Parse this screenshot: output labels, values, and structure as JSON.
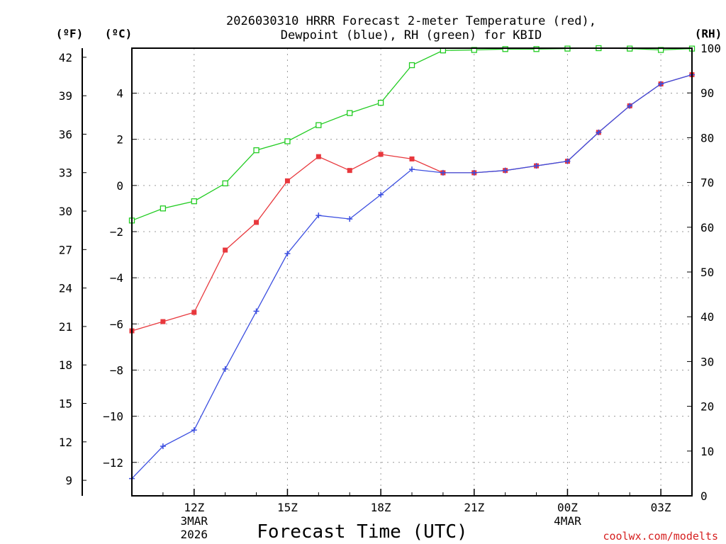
{
  "chart_data": {
    "type": "line",
    "title_line1": "2026030310 HRRR Forecast 2-meter Temperature (red),",
    "title_line2": "Dewpoint (blue), RH (green) for KBID",
    "units": {
      "left_outer": "(ºF)",
      "left_inner": "(ºC)",
      "right": "(RH)"
    },
    "xlabel": "Forecast Time (UTC)",
    "credit": "coolwx.com/modelts",
    "x_hours": [
      0,
      1,
      2,
      3,
      4,
      5,
      6,
      7,
      8,
      9,
      10,
      11,
      12,
      13,
      14,
      15,
      16,
      17,
      18
    ],
    "x_ticks": [
      {
        "hour": 2,
        "lines": [
          "12Z",
          "3MAR",
          "2026"
        ]
      },
      {
        "hour": 5,
        "lines": [
          "15Z"
        ]
      },
      {
        "hour": 8,
        "lines": [
          "18Z"
        ]
      },
      {
        "hour": 11,
        "lines": [
          "21Z"
        ]
      },
      {
        "hour": 14,
        "lines": [
          "00Z",
          "4MAR"
        ]
      },
      {
        "hour": 17,
        "lines": [
          "03Z"
        ]
      }
    ],
    "celsius_ylim": [
      -13.45,
      5.95
    ],
    "rh_ylim": [
      0,
      100
    ],
    "fahrenheit_ticks": [
      9,
      12,
      15,
      18,
      21,
      24,
      27,
      30,
      33,
      36,
      39,
      42
    ],
    "celsius_ticks": [
      -12,
      -10,
      -8,
      -6,
      -4,
      -2,
      0,
      2,
      4
    ],
    "rh_ticks": [
      0,
      10,
      20,
      30,
      40,
      50,
      60,
      70,
      80,
      90,
      100
    ],
    "series": [
      {
        "name": "2-meter Temperature",
        "unit": "C",
        "color": "#e8383d",
        "marker": "filled-square",
        "values": [
          -6.3,
          -5.9,
          -5.5,
          -2.8,
          -1.6,
          0.2,
          1.25,
          0.65,
          1.35,
          1.15,
          0.55,
          0.55,
          0.65,
          0.85,
          1.05,
          2.3,
          3.45,
          4.4,
          4.8
        ]
      },
      {
        "name": "Dewpoint",
        "unit": "C",
        "color": "#3b4ee0",
        "marker": "plus",
        "values": [
          -12.7,
          -11.3,
          -10.6,
          -7.95,
          -5.45,
          -2.95,
          -1.3,
          -1.45,
          -0.4,
          0.7,
          0.55,
          0.55,
          0.65,
          0.85,
          1.05,
          2.3,
          3.45,
          4.4,
          4.8
        ]
      },
      {
        "name": "Relative Humidity",
        "unit": "%",
        "color": "#22cc22",
        "marker": "open-square",
        "values": [
          61.5,
          64.2,
          65.8,
          69.8,
          77.2,
          79.2,
          82.8,
          85.5,
          87.8,
          96.2,
          99.5,
          99.6,
          99.8,
          99.8,
          99.9,
          100,
          99.9,
          99.6,
          99.9
        ]
      }
    ]
  }
}
